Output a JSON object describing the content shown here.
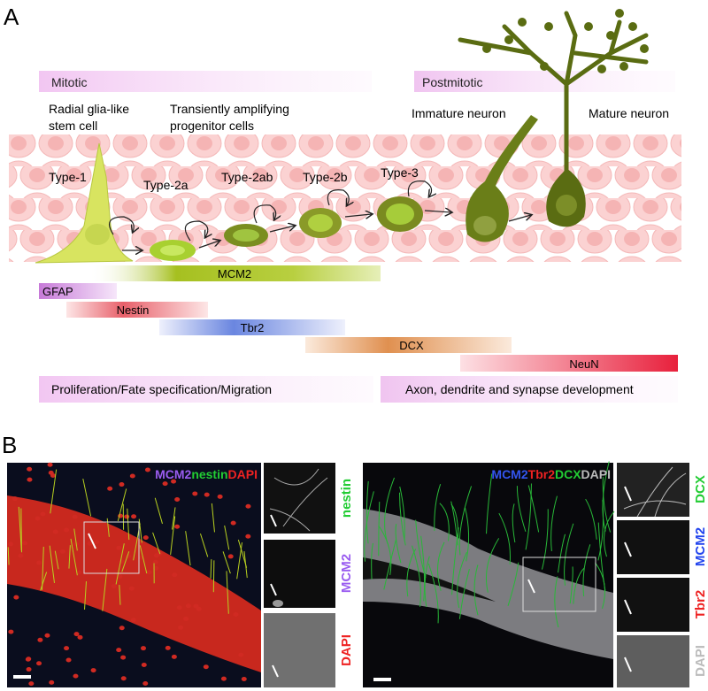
{
  "panel_a": {
    "label": "A",
    "phases": {
      "mitotic": "Mitotic",
      "postmitotic": "Postmitotic"
    },
    "cell_groups": {
      "radial_line1": "Radial glia-like",
      "radial_line2": "stem cell",
      "tap_line1": "Transiently amplifying",
      "tap_line2": "progenitor cells",
      "immature": "Immature neuron",
      "mature": "Mature neuron"
    },
    "cell_types": [
      "Type-1",
      "Type-2a",
      "Type-2ab",
      "Type-2b",
      "Type-3"
    ],
    "markers": [
      {
        "name": "MCM2",
        "color": "#a6c020"
      },
      {
        "name": "GFAP",
        "color": "#c77ad8"
      },
      {
        "name": "Nestin",
        "color": "#e8606a"
      },
      {
        "name": "Tbr2",
        "color": "#6a86e0"
      },
      {
        "name": "DCX",
        "color": "#e09050"
      },
      {
        "name": "NeuN",
        "color": "#e8203c"
      }
    ],
    "processes": {
      "left": "Proliferation/Fate specification/Migration",
      "right": "Axon, dendrite and synapse development"
    }
  },
  "panel_b": {
    "label": "B",
    "left": {
      "title_parts": [
        {
          "text": "MCM2",
          "color": "#9a5cf0"
        },
        {
          "text": "nestin",
          "color": "#22cc33"
        },
        {
          "text": "DAPI",
          "color": "#ee2222"
        }
      ],
      "channels": [
        {
          "text": "nestin",
          "color": "#22cc33"
        },
        {
          "text": "MCM2",
          "color": "#9a5cf0"
        },
        {
          "text": "DAPI",
          "color": "#ee2222"
        }
      ]
    },
    "right": {
      "title_parts": [
        {
          "text": "MCM2",
          "color": "#3355ee"
        },
        {
          "text": "Tbr2",
          "color": "#ee2222"
        },
        {
          "text": "DCX",
          "color": "#22cc33"
        },
        {
          "text": "DAPI",
          "color": "#bbbbbb"
        }
      ],
      "channels": [
        {
          "text": "DCX",
          "color": "#22cc33"
        },
        {
          "text": "MCM2",
          "color": "#2244ee"
        },
        {
          "text": "Tbr2",
          "color": "#ee2222"
        },
        {
          "text": "DAPI",
          "color": "#bbbbbb"
        }
      ]
    }
  }
}
